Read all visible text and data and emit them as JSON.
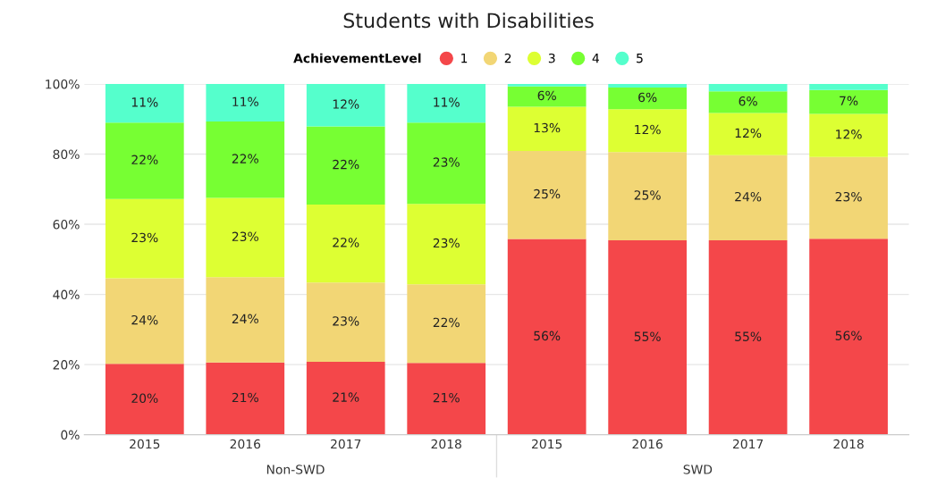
{
  "chart_data": {
    "type": "bar",
    "title": "Students with Disabilities",
    "stacked": true,
    "categories": [
      "2015",
      "2016",
      "2017",
      "2018",
      "2015",
      "2016",
      "2017",
      "2018"
    ],
    "annotations": [
      "Non-SWD",
      "SWD"
    ],
    "legend_title": "AchievementLevel",
    "legend": "top",
    "marker": "circle",
    "grid": "y",
    "ylim": [
      0,
      100
    ],
    "yticks": [
      {
        "value": 0,
        "label": "0%"
      },
      {
        "value": 20,
        "label": "20%"
      },
      {
        "value": 40,
        "label": "40%"
      },
      {
        "value": 60,
        "label": "60%"
      },
      {
        "value": 80,
        "label": "80%"
      },
      {
        "value": 100,
        "label": "100%"
      }
    ],
    "series": [
      {
        "name": "1",
        "color": "#f4474a",
        "values": [
          20.2,
          20.6,
          20.8,
          20.5,
          55.8,
          55.4,
          55.4,
          55.9
        ],
        "value_labels": [
          "20%",
          "21%",
          "21%",
          "21%",
          "56%",
          "55%",
          "55%",
          "56%"
        ]
      },
      {
        "name": "2",
        "color": "#f2d675",
        "values": [
          24.4,
          24.3,
          22.6,
          22.4,
          25.1,
          25.2,
          24.3,
          23.3
        ],
        "value_labels": [
          "24%",
          "24%",
          "23%",
          "22%",
          "25%",
          "25%",
          "24%",
          "23%"
        ]
      },
      {
        "name": "3",
        "color": "#ddff33",
        "values": [
          22.6,
          22.6,
          22.2,
          22.9,
          12.6,
          12.2,
          12.0,
          12.3
        ],
        "value_labels": [
          "23%",
          "23%",
          "22%",
          "23%",
          "13%",
          "12%",
          "12%",
          "12%"
        ]
      },
      {
        "name": "4",
        "color": "#77ff33",
        "values": [
          21.8,
          21.8,
          22.3,
          23.2,
          5.8,
          6.2,
          6.2,
          6.8
        ],
        "value_labels": [
          "22%",
          "22%",
          "22%",
          "23%",
          "6%",
          "6%",
          "6%",
          "7%"
        ]
      },
      {
        "name": "5",
        "color": "#55ffcc",
        "values": [
          11.0,
          11.0,
          12.1,
          11.0,
          0.7,
          1.0,
          2.1,
          1.7
        ],
        "value_labels": [
          "11%",
          "11%",
          "12%",
          "11%",
          null,
          null,
          null,
          null
        ]
      }
    ]
  }
}
